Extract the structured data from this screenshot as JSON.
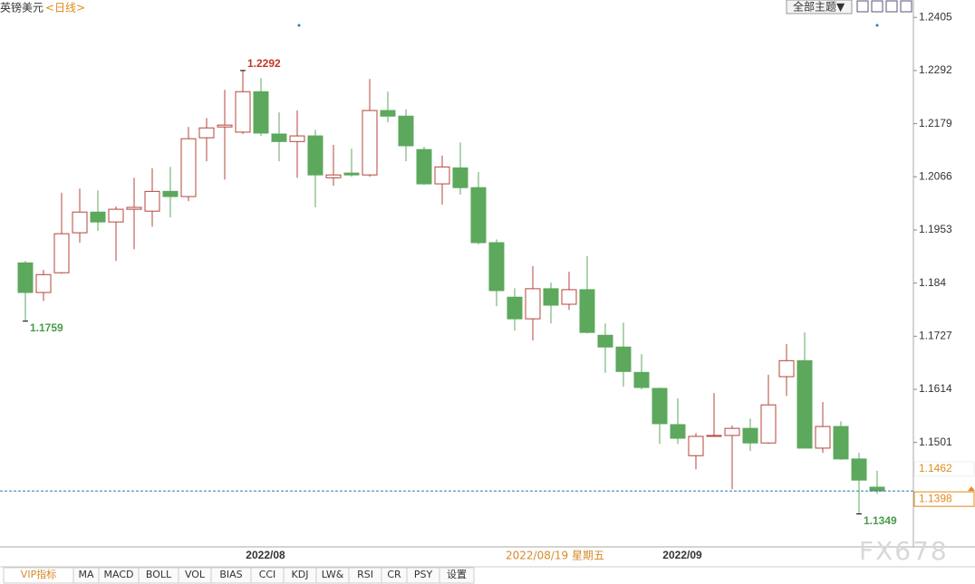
{
  "header": {
    "symbol": "英镑美元",
    "period": "<日线>",
    "theme_button": "全部主题▼"
  },
  "chart_data": {
    "type": "candlestick",
    "categories": [
      null,
      null,
      null,
      null,
      null,
      null,
      null,
      null,
      null,
      null,
      null,
      null,
      null,
      "2022/08",
      null,
      null,
      null,
      null,
      null,
      null,
      null,
      null,
      null,
      null,
      null,
      null,
      null,
      null,
      null,
      null,
      null,
      null,
      null,
      null,
      null,
      null,
      "2022/09",
      null,
      null,
      null,
      null,
      null,
      null,
      null,
      null,
      null,
      null,
      null
    ],
    "open": [
      1.1883,
      1.182,
      1.1862,
      1.1947,
      1.1991,
      1.197,
      1.1997,
      1.1993,
      1.2035,
      1.2024,
      1.2149,
      1.2172,
      1.2161,
      1.2247,
      1.2157,
      1.2141,
      1.2153,
      1.2064,
      1.2074,
      1.207,
      1.2207,
      1.2195,
      1.2124,
      1.2051,
      1.2085,
      1.2043,
      1.1926,
      1.181,
      1.1764,
      1.1828,
      1.1795,
      1.1826,
      1.1729,
      1.1704,
      1.165,
      1.1616,
      1.1539,
      1.1473,
      1.1514,
      1.1516,
      1.1531,
      1.15,
      1.1641,
      1.1675,
      1.1489,
      1.1535,
      1.1466,
      1.1406
    ],
    "high": [
      1.1887,
      1.1868,
      1.2032,
      1.2041,
      1.2037,
      1.2003,
      1.2064,
      1.2084,
      1.2087,
      1.2172,
      1.2191,
      1.2251,
      1.2292,
      1.2276,
      1.2203,
      1.2207,
      1.2166,
      1.2134,
      1.2126,
      1.2274,
      1.2247,
      1.2209,
      1.213,
      1.2111,
      1.2139,
      1.2076,
      1.1933,
      1.1829,
      1.1876,
      1.1841,
      1.1864,
      1.1897,
      1.1754,
      1.1756,
      1.1689,
      1.1618,
      1.1595,
      1.1521,
      1.1606,
      1.1537,
      1.1552,
      1.1645,
      1.171,
      1.1735,
      1.1587,
      1.1546,
      1.1479,
      1.1441
    ],
    "low": [
      1.1759,
      1.1802,
      1.186,
      1.1926,
      1.1951,
      1.1887,
      1.1912,
      1.196,
      1.198,
      1.2014,
      1.2099,
      1.206,
      1.2157,
      1.2153,
      1.2099,
      1.2064,
      1.2001,
      1.2047,
      1.2066,
      1.2066,
      1.2182,
      1.2099,
      1.2049,
      1.2007,
      1.2028,
      1.1922,
      1.1791,
      1.1739,
      1.1718,
      1.1754,
      1.1783,
      1.1733,
      1.1649,
      1.162,
      1.1614,
      1.1498,
      1.1498,
      1.1444,
      1.1514,
      1.1402,
      1.1483,
      1.1498,
      1.16,
      1.1489,
      1.1479,
      1.1464,
      1.1349,
      1.1392
    ],
    "close": [
      1.182,
      1.1858,
      1.1945,
      1.1991,
      1.197,
      1.1997,
      1.2001,
      1.2035,
      1.2024,
      1.2147,
      1.217,
      1.2176,
      1.2247,
      1.2159,
      1.2141,
      1.2153,
      1.207,
      1.207,
      1.207,
      1.2207,
      1.2195,
      1.2132,
      1.2051,
      1.2087,
      1.2043,
      1.1926,
      1.1824,
      1.1764,
      1.1828,
      1.1793,
      1.1826,
      1.1735,
      1.1704,
      1.1652,
      1.1618,
      1.1541,
      1.151,
      1.1514,
      1.1516,
      1.1531,
      1.15,
      1.1581,
      1.1675,
      1.1489,
      1.1535,
      1.1466,
      1.1421,
      1.1398
    ],
    "up_color": "#b5443a",
    "down_color": "#5ca85c",
    "ylim": [
      1.1279,
      1.2442
    ],
    "yticks": [
      1.2405,
      1.2292,
      1.2179,
      1.2066,
      1.1953,
      1.184,
      1.1727,
      1.1614,
      1.1501
    ],
    "marker_price": 1.1462,
    "cursor_date": "2022/08/19 星期五"
  },
  "tabs": [
    "VIP指标",
    "MA",
    "MACD",
    "BOLL",
    "VOL",
    "BIAS",
    "CCI",
    "KDJ",
    "LW&",
    "RSI",
    "CR",
    "PSY",
    "设置"
  ],
  "watermark": "FX678"
}
